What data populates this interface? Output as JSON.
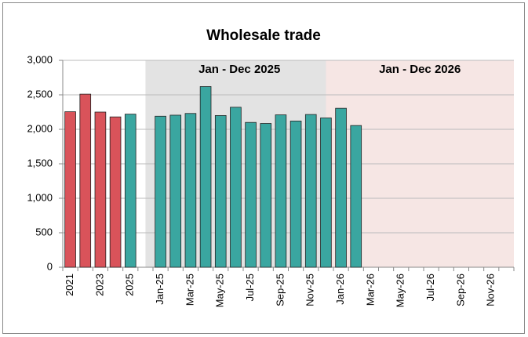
{
  "chart_data": {
    "type": "bar",
    "title": "Wholesale trade",
    "categories": [
      "2021",
      null,
      "2023",
      null,
      "2025",
      null,
      "Jan-25",
      null,
      "Mar-25",
      null,
      "May-25",
      null,
      "Jul-25",
      null,
      "Sep-25",
      null,
      "Nov-25",
      null,
      "Jan-26",
      null,
      "Mar-26",
      null,
      "May-26",
      null,
      "Jul-26",
      null,
      "Sep-26",
      null,
      "Nov-26",
      null
    ],
    "values": [
      2255,
      2510,
      2250,
      2180,
      2220,
      null,
      2190,
      2205,
      2230,
      2620,
      2200,
      2320,
      2100,
      2085,
      2210,
      2120,
      2215,
      2165,
      2305,
      2055,
      null,
      null,
      null,
      null,
      null,
      null,
      null,
      null,
      null,
      null
    ],
    "colors": [
      "#d9535a",
      "#d9535a",
      "#d9535a",
      "#d9535a",
      "#3aa6a0",
      null,
      "#3aa6a0",
      "#3aa6a0",
      "#3aa6a0",
      "#3aa6a0",
      "#3aa6a0",
      "#3aa6a0",
      "#3aa6a0",
      "#3aa6a0",
      "#3aa6a0",
      "#3aa6a0",
      "#3aa6a0",
      "#3aa6a0",
      "#3aa6a0",
      "#3aa6a0",
      null,
      null,
      null,
      null,
      null,
      null,
      null,
      null,
      null,
      null
    ],
    "regions": [
      {
        "label": "Jan - Dec 2025",
        "color": "#e3e3e3",
        "span": [
          6,
          17
        ]
      },
      {
        "label": "Jan - Dec 2026",
        "color": "#f6e6e4",
        "span": [
          18,
          29
        ]
      }
    ],
    "ylim": [
      0,
      3000
    ],
    "yticks": [
      0,
      500,
      {
        "value": 1000,
        "label": "1,000"
      },
      {
        "value": 1500,
        "label": "1,500"
      },
      {
        "value": 2000,
        "label": "2,000"
      },
      {
        "value": 2500,
        "label": "2,500"
      },
      {
        "value": 3000,
        "label": "3,000"
      }
    ],
    "grid": true
  }
}
